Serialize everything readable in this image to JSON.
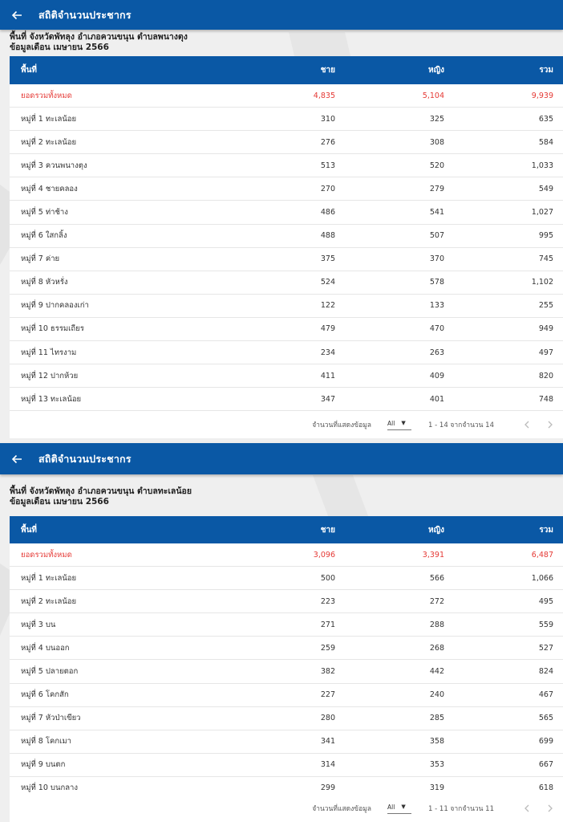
{
  "colors": {
    "appbar": "#0a58a5",
    "total_row": "#e53935"
  },
  "icons": {
    "back": "arrow-left-icon",
    "prev": "chevron-left-icon",
    "next": "chevron-right-icon",
    "dropdown": "caret-down-icon"
  },
  "panels": [
    {
      "appbar_title": "สถิติจำนวนประชากร",
      "area_line": "พื้นที่ จังหวัดพัทลุง อำเภอควนขนุน ตำบลพนางตุง",
      "period_line": "ข้อมูลเดือน เมษายน 2566",
      "headers": {
        "area": "พื้นที่",
        "male": "ชาย",
        "female": "หญิง",
        "total": "รวม"
      },
      "rows": [
        {
          "area": "ยอดรวมทั้งหมด",
          "male": "4,835",
          "female": "5,104",
          "total": "9,939"
        },
        {
          "area": "หมู่ที่ 1 ทะเลน้อย",
          "male": "310",
          "female": "325",
          "total": "635"
        },
        {
          "area": "หมู่ที่ 2 ทะเลน้อย",
          "male": "276",
          "female": "308",
          "total": "584"
        },
        {
          "area": "หมู่ที่ 3 ควนพนางตุง",
          "male": "513",
          "female": "520",
          "total": "1,033"
        },
        {
          "area": "หมู่ที่ 4 ชายคลอง",
          "male": "270",
          "female": "279",
          "total": "549"
        },
        {
          "area": "หมู่ที่ 5 ท่าช้าง",
          "male": "486",
          "female": "541",
          "total": "1,027"
        },
        {
          "area": "หมู่ที่ 6 ใสกลิ้ง",
          "male": "488",
          "female": "507",
          "total": "995"
        },
        {
          "area": "หมู่ที่ 7 ค่าย",
          "male": "375",
          "female": "370",
          "total": "745"
        },
        {
          "area": "หมู่ที่ 8 หัวหรั่ง",
          "male": "524",
          "female": "578",
          "total": "1,102"
        },
        {
          "area": "หมู่ที่ 9 ปากคลองเก่า",
          "male": "122",
          "female": "133",
          "total": "255"
        },
        {
          "area": "หมู่ที่ 10 ธรรมเถียร",
          "male": "479",
          "female": "470",
          "total": "949"
        },
        {
          "area": "หมู่ที่ 11 ไทรงาม",
          "male": "234",
          "female": "263",
          "total": "497"
        },
        {
          "area": "หมู่ที่ 12 ปากห้วย",
          "male": "411",
          "female": "409",
          "total": "820"
        },
        {
          "area": "หมู่ที่ 13 ทะเลน้อย",
          "male": "347",
          "female": "401",
          "total": "748"
        }
      ],
      "footer": {
        "rows_label": "จำนวนที่แสดงข้อมูล",
        "rows_value": "All",
        "range": "1 - 14 จากจำนวน 14"
      }
    },
    {
      "appbar_title": "สถิติจำนวนประชากร",
      "area_line": "พื้นที่ จังหวัดพัทลุง อำเภอควนขนุน ตำบลทะเลน้อย",
      "period_line": "ข้อมูลเดือน เมษายน 2566",
      "headers": {
        "area": "พื้นที่",
        "male": "ชาย",
        "female": "หญิง",
        "total": "รวม"
      },
      "rows": [
        {
          "area": "ยอดรวมทั้งหมด",
          "male": "3,096",
          "female": "3,391",
          "total": "6,487"
        },
        {
          "area": "หมู่ที่ 1 ทะเลน้อย",
          "male": "500",
          "female": "566",
          "total": "1,066"
        },
        {
          "area": "หมู่ที่ 2 ทะเลน้อย",
          "male": "223",
          "female": "272",
          "total": "495"
        },
        {
          "area": "หมู่ที่ 3 บน",
          "male": "271",
          "female": "288",
          "total": "559"
        },
        {
          "area": "หมู่ที่ 4 บนออก",
          "male": "259",
          "female": "268",
          "total": "527"
        },
        {
          "area": "หมู่ที่ 5 ปลายตอก",
          "male": "382",
          "female": "442",
          "total": "824"
        },
        {
          "area": "หมู่ที่ 6 โคกสัก",
          "male": "227",
          "female": "240",
          "total": "467"
        },
        {
          "area": "หมู่ที่ 7 หัวป่าเขียว",
          "male": "280",
          "female": "285",
          "total": "565"
        },
        {
          "area": "หมู่ที่ 8 โคกเมา",
          "male": "341",
          "female": "358",
          "total": "699"
        },
        {
          "area": "หมู่ที่ 9 บนตก",
          "male": "314",
          "female": "353",
          "total": "667"
        },
        {
          "area": "หมู่ที่ 10 บนกลาง",
          "male": "299",
          "female": "319",
          "total": "618"
        }
      ],
      "footer": {
        "rows_label": "จำนวนที่แสดงข้อมูล",
        "rows_value": "All",
        "range": "1 - 11 จากจำนวน 11"
      }
    }
  ]
}
